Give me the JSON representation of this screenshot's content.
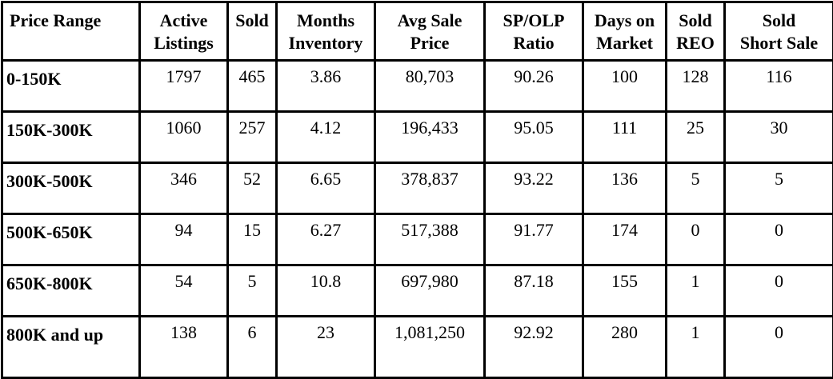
{
  "table": {
    "headers": [
      "Price Range",
      "Active Listings",
      "Sold",
      "Months Inventory",
      "Avg Sale Price",
      "SP/OLP Ratio",
      "Days on Market",
      "Sold REO",
      "Sold Short Sale"
    ],
    "header_lines": [
      [
        "Price Range"
      ],
      [
        "Active",
        "Listings"
      ],
      [
        "Sold"
      ],
      [
        "Months",
        "Inventory"
      ],
      [
        "Avg Sale",
        "Price"
      ],
      [
        "SP/OLP",
        "Ratio"
      ],
      [
        "Days on",
        "Market"
      ],
      [
        "Sold",
        "REO"
      ],
      [
        "Sold",
        "Short Sale"
      ]
    ],
    "rows": [
      [
        "0-150K",
        "1797",
        "465",
        "3.86",
        "80,703",
        "90.26",
        "100",
        "128",
        "116"
      ],
      [
        "150K-300K",
        "1060",
        "257",
        "4.12",
        "196,433",
        "95.05",
        "111",
        "25",
        "30"
      ],
      [
        "300K-500K",
        "346",
        "52",
        "6.65",
        "378,837",
        "93.22",
        "136",
        "5",
        "5"
      ],
      [
        "500K-650K",
        "94",
        "15",
        "6.27",
        "517,388",
        "91.77",
        "174",
        "0",
        "0"
      ],
      [
        "650K-800K",
        "54",
        "5",
        "10.8",
        "697,980",
        "87.18",
        "155",
        "1",
        "0"
      ],
      [
        "800K and up",
        "138",
        "6",
        "23",
        "1,081,250",
        "92.92",
        "280",
        "1",
        "0"
      ]
    ]
  }
}
